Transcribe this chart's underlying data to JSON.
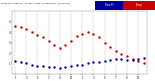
{
  "title": "Milwaukee Weather Outdoor Temperature vs Dew Point (24 Hours)",
  "background_color": "#ffffff",
  "grid_color": "#aaaaaa",
  "ylim": [
    0,
    60
  ],
  "xlim": [
    0.5,
    24.5
  ],
  "ytick_vals": [
    10,
    20,
    30,
    40,
    50
  ],
  "ytick_labels": [
    "1",
    "2",
    "3",
    "4",
    "5"
  ],
  "xtick_vals": [
    1,
    3,
    5,
    7,
    9,
    11,
    13,
    15,
    17,
    19,
    21,
    23
  ],
  "xtick_labels": [
    "1",
    "3",
    "5",
    "7",
    "9",
    "11",
    "1",
    "3",
    "5",
    "7",
    "9",
    "11"
  ],
  "temp_color": "#cc0000",
  "dew_color": "#000099",
  "temp_x": [
    1,
    2,
    3,
    4,
    5,
    6,
    7,
    8,
    9,
    10,
    11,
    12,
    13,
    14,
    15,
    16,
    17,
    18,
    19,
    20,
    21,
    22,
    23,
    24
  ],
  "temp_y": [
    46,
    45,
    43,
    40,
    37,
    35,
    32,
    28,
    25,
    28,
    32,
    36,
    38,
    40,
    38,
    35,
    30,
    26,
    22,
    19,
    17,
    14,
    12,
    10
  ],
  "dew_x": [
    1,
    2,
    3,
    4,
    5,
    6,
    7,
    8,
    9,
    10,
    11,
    12,
    13,
    14,
    15,
    16,
    17,
    18,
    19,
    20,
    21,
    22,
    23,
    24
  ],
  "dew_y": [
    12,
    11,
    10,
    9,
    8,
    8,
    7,
    7,
    6,
    7,
    8,
    9,
    9,
    10,
    11,
    11,
    12,
    13,
    14,
    14,
    13,
    13,
    14,
    15
  ],
  "legend_temp_label": "Temp",
  "legend_dew_label": "Dew Pt",
  "marker_size": 3
}
